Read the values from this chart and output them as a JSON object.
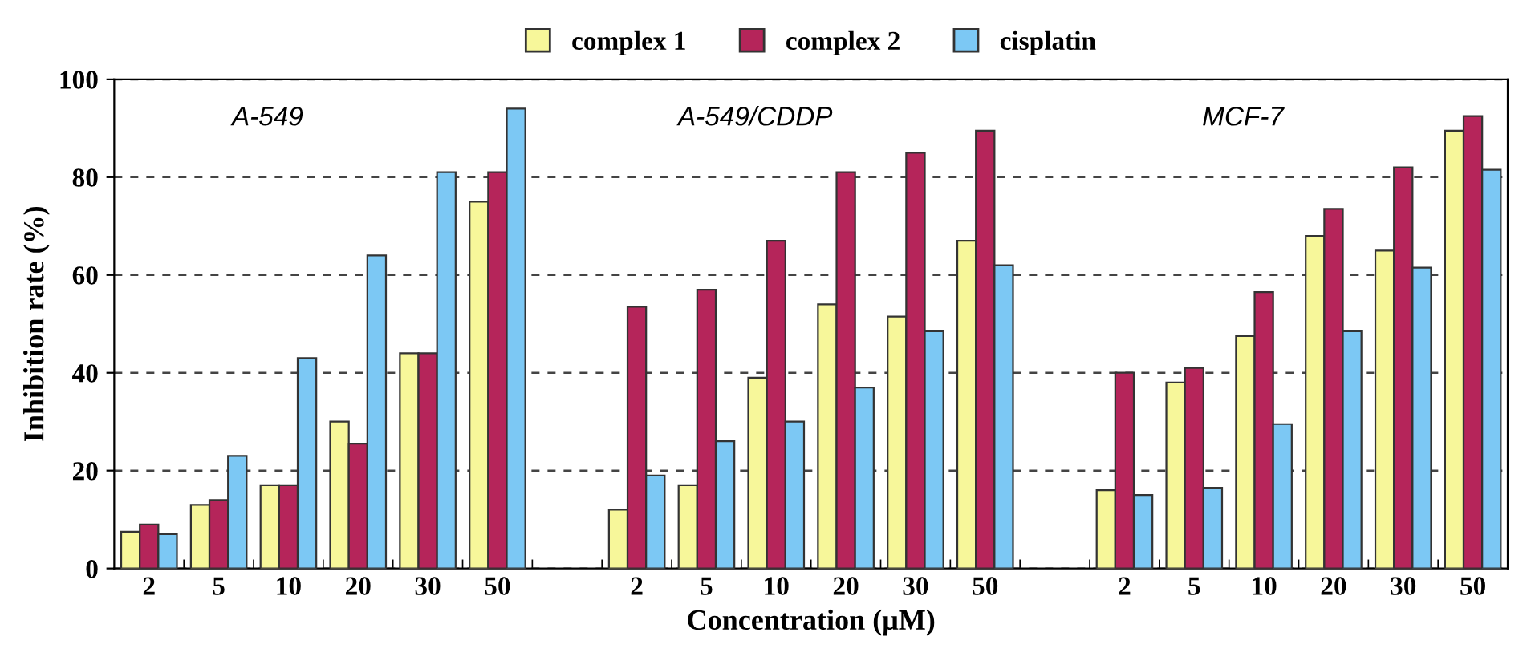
{
  "chart_data": {
    "type": "bar",
    "xlabel": "Concentration (μM)",
    "ylabel": "Inhibition rate (%)",
    "categories": [
      "2",
      "5",
      "10",
      "20",
      "30",
      "50",
      null,
      "2",
      "5",
      "10",
      "20",
      "30",
      "50",
      null,
      "2",
      "5",
      "10",
      "20",
      "30",
      "50"
    ],
    "series": [
      {
        "name": "complex 1",
        "color": "#f7f79a",
        "values": [
          7.5,
          13,
          17,
          30,
          44,
          75,
          null,
          12,
          17,
          39,
          54,
          51.5,
          67,
          null,
          16,
          38,
          47.5,
          68,
          65,
          89.5
        ]
      },
      {
        "name": "complex 2",
        "color": "#b5255a",
        "values": [
          9,
          14,
          17,
          25.5,
          44,
          81,
          null,
          53.5,
          57,
          67,
          81,
          85,
          89.5,
          null,
          40,
          41,
          56.5,
          73.5,
          82,
          92.5
        ]
      },
      {
        "name": "cisplatin",
        "color": "#7cc8f4",
        "values": [
          7,
          23,
          43,
          64,
          81,
          94,
          null,
          19,
          26,
          30,
          37,
          48.5,
          62,
          null,
          15,
          16.5,
          29.5,
          48.5,
          61.5,
          81.5
        ]
      }
    ],
    "annotations": [
      "A-549",
      "A-549/CDDP",
      "MCF-7"
    ],
    "ylim": [
      0,
      100
    ],
    "yticks": [
      0,
      20,
      40,
      60,
      80,
      100
    ],
    "grid": "y",
    "legend": "top"
  }
}
